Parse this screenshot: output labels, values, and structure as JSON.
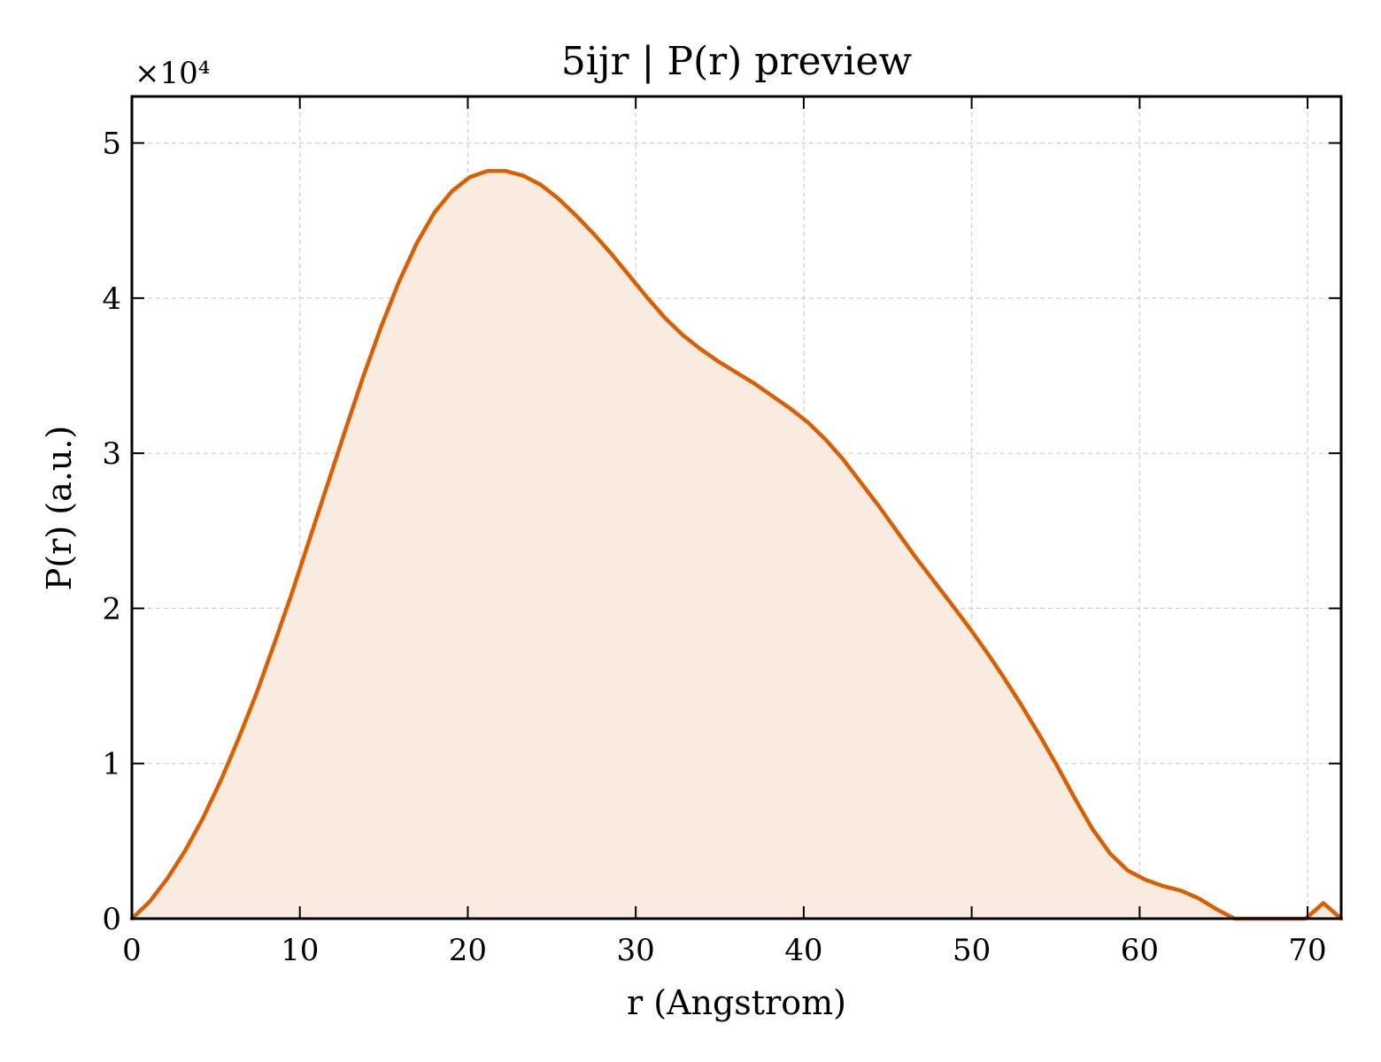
{
  "chart_data": {
    "type": "area",
    "title": "5ijr | P(r) preview",
    "xlabel": "r (Angstrom)",
    "ylabel": "P(r) (a.u.)",
    "y_multiplier_text": "×10⁴",
    "xlim": [
      0,
      72
    ],
    "ylim": [
      0,
      5.3
    ],
    "x_ticks": [
      0,
      10,
      20,
      30,
      40,
      50,
      60,
      70
    ],
    "x_tick_labels": [
      "0",
      "10",
      "20",
      "30",
      "40",
      "50",
      "60",
      "70"
    ],
    "y_ticks": [
      0,
      1,
      2,
      3,
      4,
      5
    ],
    "y_tick_labels": [
      "0",
      "1",
      "2",
      "3",
      "4",
      "5"
    ],
    "grid": true,
    "line_color": "#d95f02",
    "fill_color": "#f9ebe0",
    "series": [
      {
        "x": [
          0,
          1.06,
          2.12,
          3.18,
          4.24,
          5.29,
          6.35,
          7.41,
          8.47,
          9.53,
          10.59,
          11.65,
          12.71,
          13.76,
          14.82,
          15.88,
          16.94,
          18.0,
          19.06,
          20.12,
          21.18,
          22.24,
          23.29,
          24.35,
          25.41,
          26.47,
          27.53,
          28.59,
          29.65,
          30.71,
          31.76,
          32.82,
          33.88,
          34.94,
          36.0,
          37.06,
          38.12,
          39.18,
          40.24,
          41.29,
          42.35,
          43.41,
          44.47,
          45.53,
          46.59,
          47.65,
          48.71,
          49.76,
          50.82,
          51.88,
          52.94,
          54.0,
          55.06,
          56.12,
          57.18,
          58.24,
          59.29,
          60.35,
          61.41,
          62.47,
          63.53,
          64.59,
          65.65,
          66.71,
          67.5,
          68.83,
          69.88,
          70.94,
          72.0
        ],
        "y": [
          0,
          0.11,
          0.26,
          0.44,
          0.65,
          0.89,
          1.16,
          1.45,
          1.77,
          2.1,
          2.45,
          2.8,
          3.15,
          3.49,
          3.81,
          4.1,
          4.35,
          4.55,
          4.69,
          4.78,
          4.82,
          4.82,
          4.79,
          4.73,
          4.64,
          4.53,
          4.41,
          4.28,
          4.14,
          4.0,
          3.87,
          3.76,
          3.67,
          3.59,
          3.52,
          3.45,
          3.37,
          3.29,
          3.2,
          3.09,
          2.96,
          2.81,
          2.66,
          2.5,
          2.34,
          2.19,
          2.04,
          1.89,
          1.73,
          1.56,
          1.38,
          1.19,
          0.99,
          0.78,
          0.58,
          0.42,
          0.31,
          0.25,
          0.21,
          0.18,
          0.13,
          0.06,
          0.0,
          0.0,
          0.0,
          0.0,
          0.0,
          0.1,
          0.0
        ]
      }
    ]
  }
}
